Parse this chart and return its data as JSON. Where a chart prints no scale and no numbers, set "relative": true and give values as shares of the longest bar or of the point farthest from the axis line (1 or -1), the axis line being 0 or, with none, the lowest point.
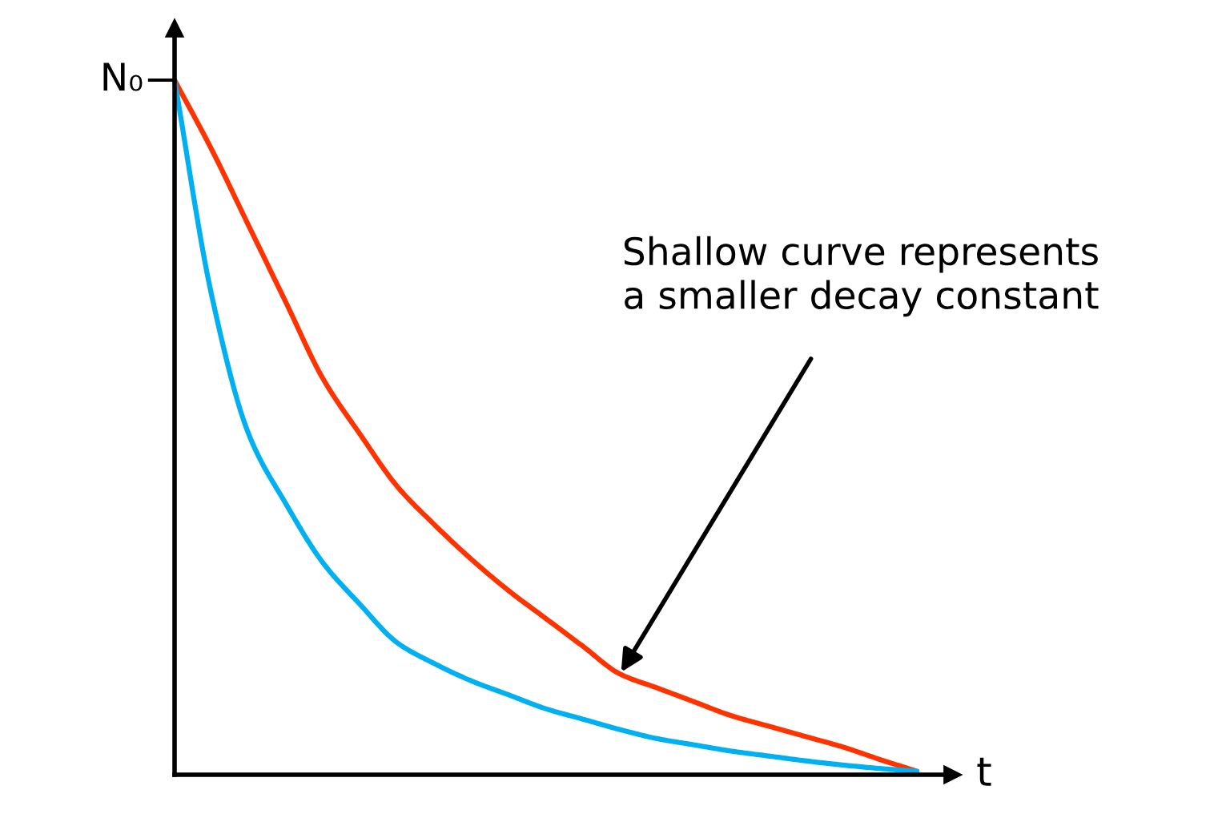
{
  "chart_data": {
    "type": "line",
    "relative": true,
    "xlabel": "t",
    "categories": [
      null,
      null,
      null,
      null,
      null,
      null,
      null,
      null,
      null,
      null,
      null,
      null,
      null,
      null,
      null,
      null,
      null,
      null,
      null,
      null,
      null
    ],
    "series": [
      {
        "color": "#ff3300",
        "values": [
          1,
          0.9,
          0.79,
          0.68,
          0.57,
          0.49,
          0.415,
          0.36,
          0.31,
          0.265,
          0.225,
          0.185,
          0.145,
          0.125,
          0.105,
          0.085,
          0.07,
          0.055,
          0.04,
          0.022,
          0.005
        ]
      },
      {
        "color": "#00b0f0",
        "values": [
          1,
          0.69,
          0.49,
          0.39,
          0.305,
          0.245,
          0.19,
          0.16,
          0.135,
          0.115,
          0.095,
          0.08,
          0.065,
          0.052,
          0.043,
          0.034,
          0.027,
          0.02,
          0.014,
          0.009,
          0.005
        ]
      }
    ],
    "annotations": [
      "N₀",
      "Shallow curve represents\na smaller decay constant"
    ]
  }
}
